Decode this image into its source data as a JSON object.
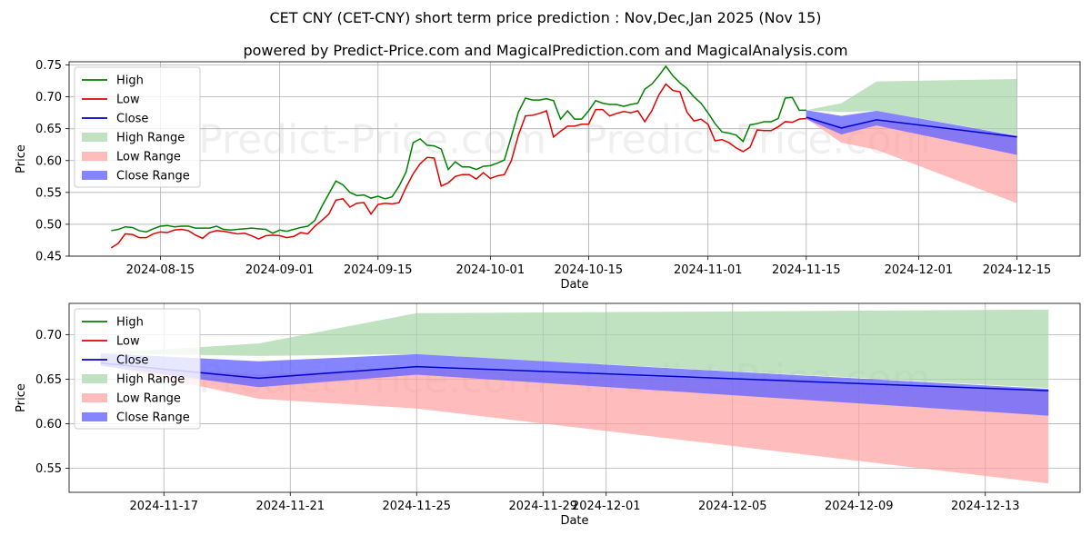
{
  "header": {
    "title": "CET CNY (CET-CNY) short term price prediction : Nov,Dec,Jan 2025 (Nov 15)",
    "subtitle": "powered by Predict-Price.com and MagicalPrediction.com and MagicalAnalysis.com"
  },
  "watermark": "Predict-Price.com",
  "colors": {
    "high": "#008000",
    "low": "#e00000",
    "close": "#0000cc",
    "high_range": "#a5d6a7",
    "low_range": "#ffa0a0",
    "close_range": "#6666ff"
  },
  "legend": [
    "High",
    "Low",
    "Close",
    "High Range",
    "Low Range",
    "Close Range"
  ],
  "chart_data": [
    {
      "type": "line",
      "title": "",
      "xlabel": "Date",
      "ylabel": "Price",
      "ylim": [
        0.45,
        0.755
      ],
      "xlim": [
        "2024-08-02",
        "2024-12-24"
      ],
      "yticks": [
        "0.45",
        "0.50",
        "0.55",
        "0.60",
        "0.65",
        "0.70",
        "0.75"
      ],
      "xticks": [
        "2024-08-15",
        "2024-09-01",
        "2024-09-15",
        "2024-10-01",
        "2024-10-15",
        "2024-11-01",
        "2024-11-15",
        "2024-12-01",
        "2024-12-15"
      ],
      "history_start": "2024-08-08",
      "high": [
        0.49,
        0.492,
        0.496,
        0.495,
        0.49,
        0.488,
        0.493,
        0.497,
        0.498,
        0.496,
        0.497,
        0.497,
        0.494,
        0.494,
        0.494,
        0.497,
        0.492,
        0.491,
        0.492,
        0.493,
        0.494,
        0.493,
        0.492,
        0.486,
        0.491,
        0.489,
        0.492,
        0.495,
        0.497,
        0.506,
        0.528,
        0.548,
        0.568,
        0.562,
        0.55,
        0.545,
        0.546,
        0.541,
        0.544,
        0.54,
        0.543,
        0.56,
        0.582,
        0.628,
        0.634,
        0.624,
        0.623,
        0.618,
        0.586,
        0.598,
        0.59,
        0.59,
        0.586,
        0.591,
        0.592,
        0.596,
        0.601,
        0.638,
        0.676,
        0.698,
        0.695,
        0.695,
        0.697,
        0.694,
        0.665,
        0.678,
        0.665,
        0.665,
        0.678,
        0.694,
        0.69,
        0.688,
        0.688,
        0.685,
        0.688,
        0.69,
        0.712,
        0.72,
        0.733,
        0.748,
        0.733,
        0.722,
        0.713,
        0.7,
        0.69,
        0.675,
        0.658,
        0.645,
        0.643,
        0.64,
        0.63,
        0.656,
        0.658,
        0.661,
        0.661,
        0.666,
        0.698,
        0.699,
        0.679,
        0.679
      ],
      "low": [
        0.463,
        0.47,
        0.485,
        0.484,
        0.479,
        0.479,
        0.485,
        0.488,
        0.487,
        0.491,
        0.492,
        0.49,
        0.483,
        0.478,
        0.487,
        0.49,
        0.489,
        0.487,
        0.485,
        0.486,
        0.482,
        0.477,
        0.482,
        0.483,
        0.482,
        0.479,
        0.481,
        0.487,
        0.485,
        0.497,
        0.506,
        0.516,
        0.538,
        0.54,
        0.527,
        0.533,
        0.534,
        0.516,
        0.531,
        0.533,
        0.532,
        0.534,
        0.558,
        0.579,
        0.595,
        0.605,
        0.604,
        0.56,
        0.565,
        0.575,
        0.578,
        0.578,
        0.571,
        0.581,
        0.572,
        0.576,
        0.578,
        0.6,
        0.64,
        0.67,
        0.671,
        0.674,
        0.678,
        0.637,
        0.646,
        0.654,
        0.654,
        0.657,
        0.657,
        0.68,
        0.68,
        0.67,
        0.674,
        0.677,
        0.675,
        0.678,
        0.661,
        0.678,
        0.703,
        0.72,
        0.71,
        0.708,
        0.676,
        0.662,
        0.665,
        0.657,
        0.631,
        0.633,
        0.628,
        0.62,
        0.614,
        0.621,
        0.648,
        0.647,
        0.647,
        0.653,
        0.661,
        0.66,
        0.665,
        0.666
      ]
    },
    {
      "type": "area",
      "title": "",
      "xlabel": "Date",
      "ylabel": "Price",
      "ylim": [
        0.523,
        0.735
      ],
      "xlim": [
        "2024-11-14",
        "2024-12-16"
      ],
      "yticks": [
        "0.55",
        "0.60",
        "0.65",
        "0.70"
      ],
      "xticks": [
        "2024-11-17",
        "2024-11-21",
        "2024-11-25",
        "2024-11-29",
        "2024-12-01",
        "2024-12-05",
        "2024-12-09",
        "2024-12-13"
      ],
      "x": [
        "2024-11-15",
        "2024-11-20",
        "2024-11-25",
        "2024-12-15"
      ],
      "close": [
        0.668,
        0.651,
        0.664,
        0.637
      ],
      "high_range_upper": [
        0.679,
        0.69,
        0.724,
        0.728
      ],
      "high_range_lower": [
        0.679,
        0.676,
        0.678,
        0.64
      ],
      "low_range_upper": [
        0.666,
        0.655,
        0.662,
        0.636
      ],
      "low_range_lower": [
        0.666,
        0.628,
        0.617,
        0.533
      ],
      "close_range_upper": [
        0.679,
        0.67,
        0.678,
        0.639
      ],
      "close_range_lower": [
        0.665,
        0.641,
        0.655,
        0.609
      ]
    }
  ]
}
